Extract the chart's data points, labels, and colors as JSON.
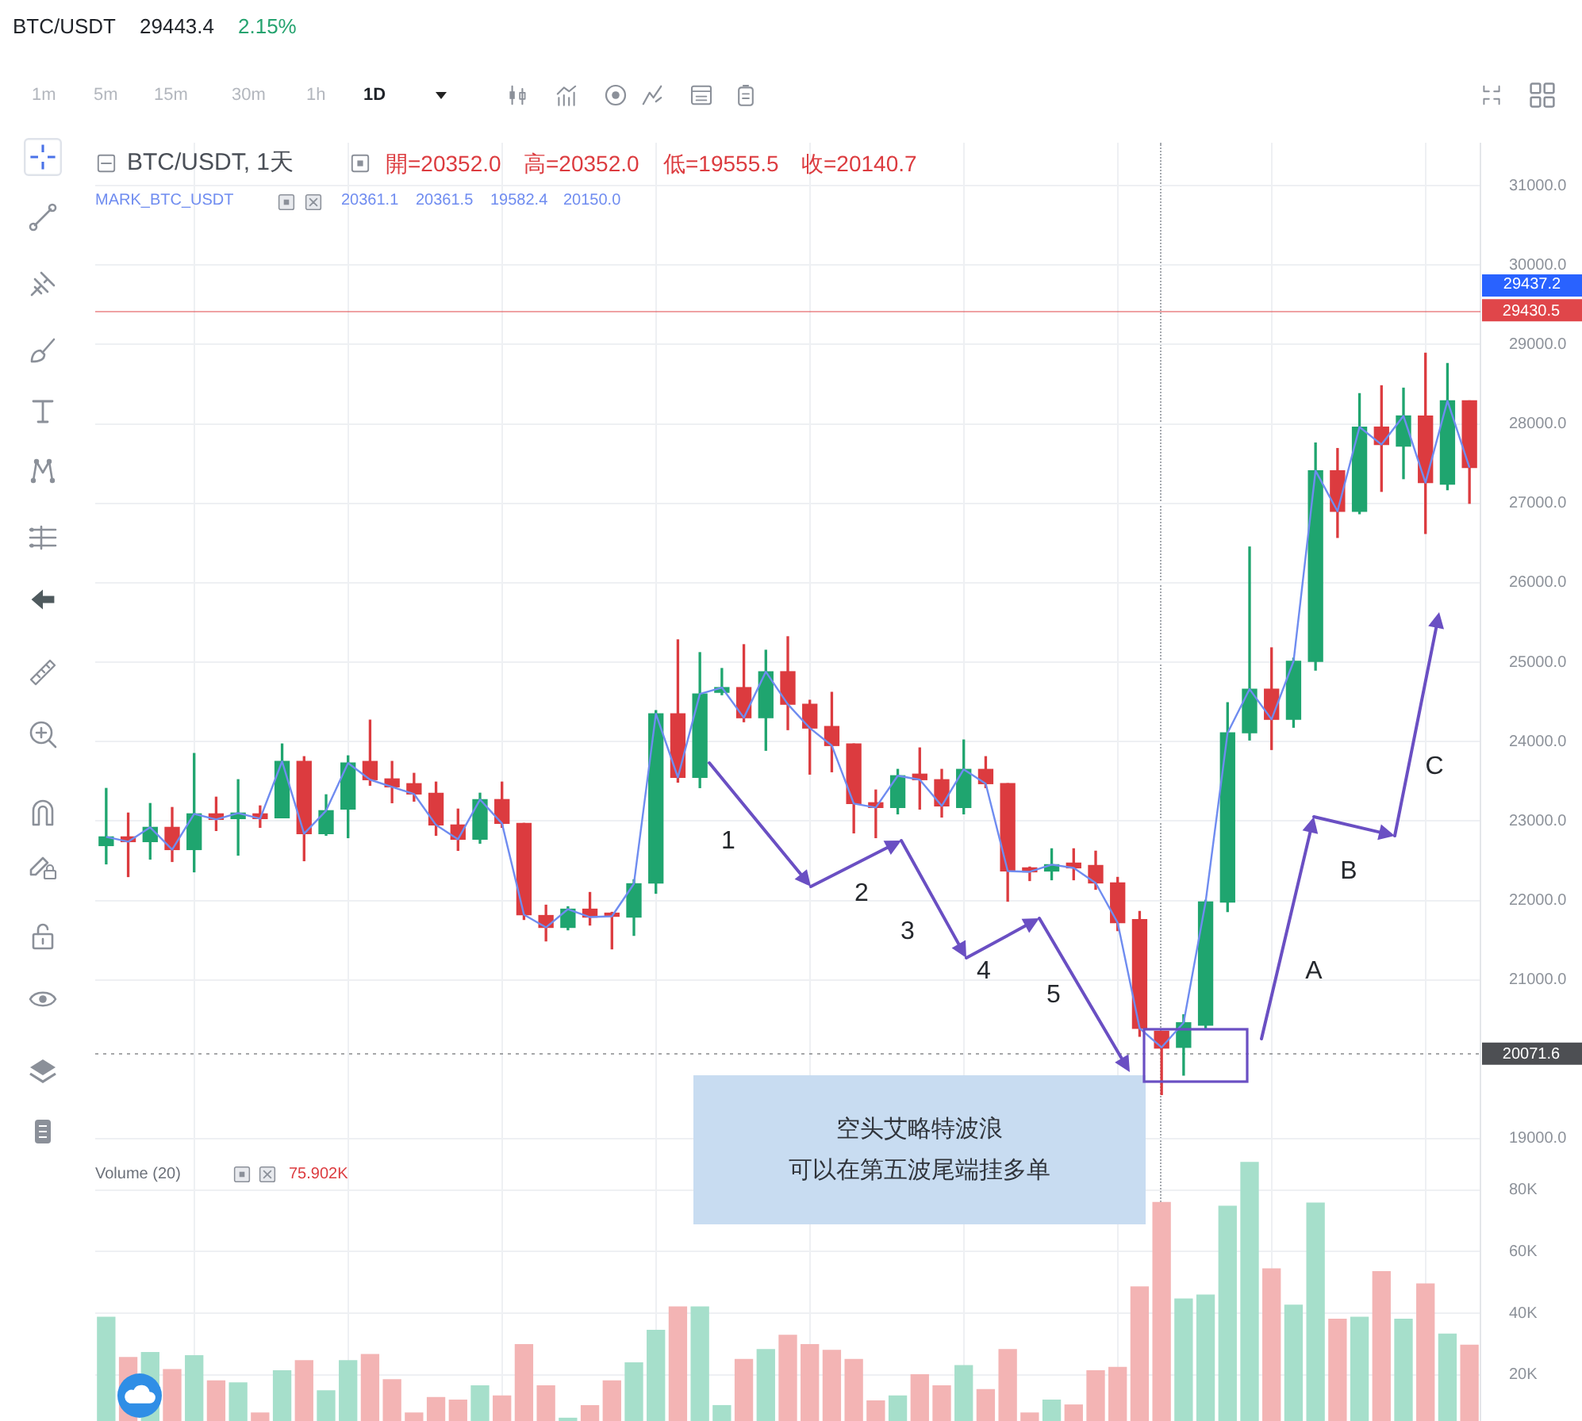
{
  "chart_data": [
    {
      "type": "candlestick",
      "title": "BTC/USDT, 1天",
      "categories": [
        null,
        null,
        null,
        null,
        null,
        null,
        null,
        null,
        null,
        null,
        null,
        null,
        null,
        null,
        null,
        null,
        null,
        null,
        null,
        null,
        null,
        null,
        null,
        null,
        null,
        null,
        null,
        null,
        null,
        null,
        null,
        null,
        null,
        null,
        null,
        null,
        null,
        null,
        null,
        null,
        null,
        null,
        null,
        null,
        null,
        null,
        null,
        null,
        null,
        null,
        null,
        null,
        null,
        null,
        null,
        null,
        null,
        null,
        null,
        null,
        null,
        null,
        null
      ],
      "ohlc": [
        [
          22690,
          23410,
          22460,
          22800
        ],
        [
          22800,
          23100,
          22300,
          22740
        ],
        [
          22740,
          23220,
          22520,
          22920
        ],
        [
          22920,
          23170,
          22490,
          22640
        ],
        [
          22640,
          23850,
          22360,
          23090
        ],
        [
          23090,
          23300,
          22880,
          23020
        ],
        [
          23030,
          23520,
          22570,
          23100
        ],
        [
          23090,
          23190,
          22920,
          23030
        ],
        [
          23040,
          23970,
          23040,
          23750
        ],
        [
          23750,
          23810,
          22500,
          22840
        ],
        [
          22840,
          23330,
          22820,
          23130
        ],
        [
          23150,
          23820,
          22790,
          23730
        ],
        [
          23750,
          24270,
          23450,
          23520
        ],
        [
          23530,
          23750,
          23230,
          23430
        ],
        [
          23470,
          23600,
          23250,
          23340
        ],
        [
          23350,
          23490,
          22820,
          22950
        ],
        [
          22950,
          23150,
          22630,
          22770
        ],
        [
          22770,
          23350,
          22720,
          23270
        ],
        [
          23270,
          23490,
          22920,
          22970
        ],
        [
          22970,
          22970,
          21760,
          21820
        ],
        [
          21810,
          21940,
          21490,
          21660
        ],
        [
          21660,
          21920,
          21630,
          21890
        ],
        [
          21890,
          22100,
          21690,
          21790
        ],
        [
          21840,
          21850,
          21390,
          21800
        ],
        [
          21790,
          22260,
          21560,
          22210
        ],
        [
          22220,
          24390,
          22090,
          24350
        ],
        [
          24350,
          25280,
          23490,
          23550
        ],
        [
          23550,
          25120,
          23420,
          24600
        ],
        [
          24620,
          24920,
          24590,
          24680
        ],
        [
          24680,
          25220,
          24250,
          24300
        ],
        [
          24300,
          25150,
          23890,
          24880
        ],
        [
          24880,
          25320,
          24150,
          24470
        ],
        [
          24470,
          24520,
          23590,
          24170
        ],
        [
          24190,
          24620,
          23620,
          23950
        ],
        [
          23970,
          23970,
          22850,
          23220
        ],
        [
          23230,
          23390,
          22790,
          23170
        ],
        [
          23170,
          23650,
          23090,
          23570
        ],
        [
          23590,
          23920,
          23150,
          23520
        ],
        [
          23520,
          23650,
          23050,
          23190
        ],
        [
          23170,
          24020,
          23090,
          23650
        ],
        [
          23650,
          23810,
          23420,
          23470
        ],
        [
          23470,
          23470,
          21990,
          22370
        ],
        [
          22410,
          22420,
          22250,
          22360
        ],
        [
          22370,
          22650,
          22260,
          22450
        ],
        [
          22470,
          22650,
          22260,
          22410
        ],
        [
          22440,
          22620,
          22140,
          22220
        ],
        [
          22220,
          22290,
          21620,
          21720
        ],
        [
          21760,
          21860,
          20290,
          20390
        ],
        [
          20352.0,
          20352.0,
          19555.5,
          20140.7
        ],
        [
          20150,
          20560,
          19800,
          20460
        ],
        [
          20430,
          22000,
          20390,
          21980
        ],
        [
          21980,
          24490,
          21860,
          24110
        ],
        [
          24110,
          26450,
          24020,
          24660
        ],
        [
          24660,
          25180,
          23900,
          24280
        ],
        [
          24280,
          25050,
          24180,
          25010
        ],
        [
          25010,
          27760,
          24900,
          27410
        ],
        [
          27410,
          27690,
          26570,
          26900
        ],
        [
          26900,
          28380,
          26870,
          27960
        ],
        [
          27960,
          28480,
          27150,
          27740
        ],
        [
          27720,
          28450,
          27310,
          28100
        ],
        [
          28100,
          28890,
          26620,
          27260
        ],
        [
          27240,
          28760,
          27170,
          28290
        ],
        [
          28290,
          28290,
          27000,
          27450
        ]
      ],
      "colors": [
        "#1fa56f",
        "#dc3b3f",
        "#1fa56f",
        "#dc3b3f",
        "#1fa56f",
        "#dc3b3f",
        "#1fa56f",
        "#dc3b3f",
        "#1fa56f",
        "#dc3b3f",
        "#1fa56f",
        "#1fa56f",
        "#dc3b3f",
        "#dc3b3f",
        "#dc3b3f",
        "#dc3b3f",
        "#dc3b3f",
        "#1fa56f",
        "#dc3b3f",
        "#dc3b3f",
        "#dc3b3f",
        "#1fa56f",
        "#dc3b3f",
        "#dc3b3f",
        "#1fa56f",
        "#1fa56f",
        "#dc3b3f",
        "#1fa56f",
        "#1fa56f",
        "#dc3b3f",
        "#1fa56f",
        "#dc3b3f",
        "#dc3b3f",
        "#dc3b3f",
        "#dc3b3f",
        "#dc3b3f",
        "#1fa56f",
        "#dc3b3f",
        "#dc3b3f",
        "#1fa56f",
        "#dc3b3f",
        "#dc3b3f",
        "#dc3b3f",
        "#1fa56f",
        "#dc3b3f",
        "#dc3b3f",
        "#dc3b3f",
        "#dc3b3f",
        "#dc3b3f",
        "#1fa56f",
        "#1fa56f",
        "#1fa56f",
        "#1fa56f",
        "#dc3b3f",
        "#1fa56f",
        "#1fa56f",
        "#dc3b3f",
        "#1fa56f",
        "#dc3b3f",
        "#1fa56f",
        "#dc3b3f",
        "#1fa56f",
        "#dc3b3f"
      ],
      "series": [
        {
          "type": "line",
          "name": "MARK_BTC_USDT",
          "color": "#6f8cf0",
          "values": [
            22800,
            22740,
            22920,
            22640,
            23090,
            23020,
            23100,
            23030,
            23750,
            22840,
            23130,
            23730,
            23520,
            23430,
            23340,
            22950,
            22770,
            23270,
            22970,
            21820,
            21660,
            21890,
            21790,
            21800,
            22210,
            24350,
            23550,
            24600,
            24680,
            24300,
            24880,
            24470,
            24170,
            23950,
            23220,
            23170,
            23570,
            23520,
            23190,
            23650,
            23470,
            22370,
            22360,
            22450,
            22410,
            22220,
            21720,
            20390,
            20150.0,
            20460,
            21980,
            24110,
            24660,
            24280,
            25010,
            27410,
            26900,
            27960,
            27740,
            28100,
            27260,
            28290,
            27450
          ]
        }
      ],
      "ylim": [
        18840,
        31540
      ],
      "yticks": [
        {
          "value": 19000,
          "label": "19000.0"
        },
        {
          "value": 21000,
          "label": "21000.0"
        },
        {
          "value": 22000,
          "label": "22000.0"
        },
        {
          "value": 23000,
          "label": "23000.0"
        },
        {
          "value": 24000,
          "label": "24000.0"
        },
        {
          "value": 25000,
          "label": "25000.0"
        },
        {
          "value": 26000,
          "label": "26000.0"
        },
        {
          "value": 27000,
          "label": "27000.0"
        },
        {
          "value": 28000,
          "label": "28000.0"
        },
        {
          "value": 29000,
          "label": "29000.0"
        },
        {
          "value": 30000,
          "label": "30000.0"
        },
        {
          "value": 31000,
          "label": "31000.0"
        }
      ],
      "tick_labels": "y",
      "grid": true,
      "legend": "top left",
      "ref_lines": [
        {
          "axis": "y",
          "value": 29430.5,
          "label": "29430.5",
          "color": "#e0464a"
        },
        {
          "axis": "y",
          "value": 20071.6,
          "label": "20071.6",
          "color": "#4d4f53",
          "line_style": "dotted"
        }
      ],
      "annotations": [
        "BTC/USDT",
        "29443.4",
        "2.15%",
        "1m",
        "5m",
        "15m",
        "30m",
        "1h",
        "1D",
        "開=20352.0",
        "高=20352.0",
        "低=19555.5",
        "收=20140.7",
        "20361.1",
        "20361.5",
        "19582.4",
        "20150.0",
        "29437.2",
        "1",
        "2",
        "3",
        "4",
        "5",
        "A",
        "B",
        "C",
        "空头艾略特波浪",
        "可以在第五波尾端挂多单"
      ]
    },
    {
      "type": "bar",
      "title": "Volume (20)",
      "categories": [
        null,
        null,
        null,
        null,
        null,
        null,
        null,
        null,
        null,
        null,
        null,
        null,
        null,
        null,
        null,
        null,
        null,
        null,
        null,
        null,
        null,
        null,
        null,
        null,
        null,
        null,
        null,
        null,
        null,
        null,
        null,
        null,
        null,
        null,
        null,
        null,
        null,
        null,
        null,
        null,
        null,
        null,
        null,
        null,
        null,
        null,
        null,
        null,
        null,
        null,
        null,
        null,
        null,
        null,
        null,
        null,
        null,
        null,
        null,
        null,
        null,
        null,
        null
      ],
      "values": [
        38700,
        25600,
        27200,
        21700,
        26200,
        18000,
        17400,
        7600,
        21300,
        24600,
        14800,
        24600,
        26600,
        18400,
        7600,
        12600,
        11800,
        16400,
        13100,
        29800,
        16400,
        5900,
        10000,
        18000,
        23900,
        34400,
        42000,
        42000,
        10000,
        25000,
        28200,
        32800,
        29800,
        27900,
        25000,
        11500,
        13100,
        20000,
        16400,
        23000,
        15200,
        28200,
        7600,
        11800,
        10200,
        21300,
        22400,
        48500,
        75902,
        44600,
        45900,
        74700,
        88900,
        54400,
        42600,
        75700,
        38000,
        38700,
        53500,
        38000,
        49500,
        33200,
        29600
      ],
      "colors": [
        "#a6dfcb",
        "#f3b4b4",
        "#a6dfcb",
        "#f3b4b4",
        "#a6dfcb",
        "#f3b4b4",
        "#a6dfcb",
        "#f3b4b4",
        "#a6dfcb",
        "#f3b4b4",
        "#a6dfcb",
        "#a6dfcb",
        "#f3b4b4",
        "#f3b4b4",
        "#f3b4b4",
        "#f3b4b4",
        "#f3b4b4",
        "#a6dfcb",
        "#f3b4b4",
        "#f3b4b4",
        "#f3b4b4",
        "#a6dfcb",
        "#f3b4b4",
        "#f3b4b4",
        "#a6dfcb",
        "#a6dfcb",
        "#f3b4b4",
        "#a6dfcb",
        "#a6dfcb",
        "#f3b4b4",
        "#a6dfcb",
        "#f3b4b4",
        "#f3b4b4",
        "#f3b4b4",
        "#f3b4b4",
        "#f3b4b4",
        "#a6dfcb",
        "#f3b4b4",
        "#f3b4b4",
        "#a6dfcb",
        "#f3b4b4",
        "#f3b4b4",
        "#f3b4b4",
        "#a6dfcb",
        "#f3b4b4",
        "#f3b4b4",
        "#f3b4b4",
        "#f3b4b4",
        "#f3b4b4",
        "#a6dfcb",
        "#a6dfcb",
        "#a6dfcb",
        "#a6dfcb",
        "#f3b4b4",
        "#a6dfcb",
        "#a6dfcb",
        "#f3b4b4",
        "#a6dfcb",
        "#f3b4b4",
        "#a6dfcb",
        "#f3b4b4",
        "#a6dfcb",
        "#f3b4b4"
      ],
      "ylim": [
        5000,
        92500
      ],
      "yticks": [
        {
          "value": 20000,
          "label": "20K"
        },
        {
          "value": 40000,
          "label": "40K"
        },
        {
          "value": 60000,
          "label": "60K"
        },
        {
          "value": 80000,
          "label": "80K"
        }
      ],
      "tick_labels": "y",
      "grid": true,
      "annotations": [
        "75.902K"
      ]
    }
  ]
}
